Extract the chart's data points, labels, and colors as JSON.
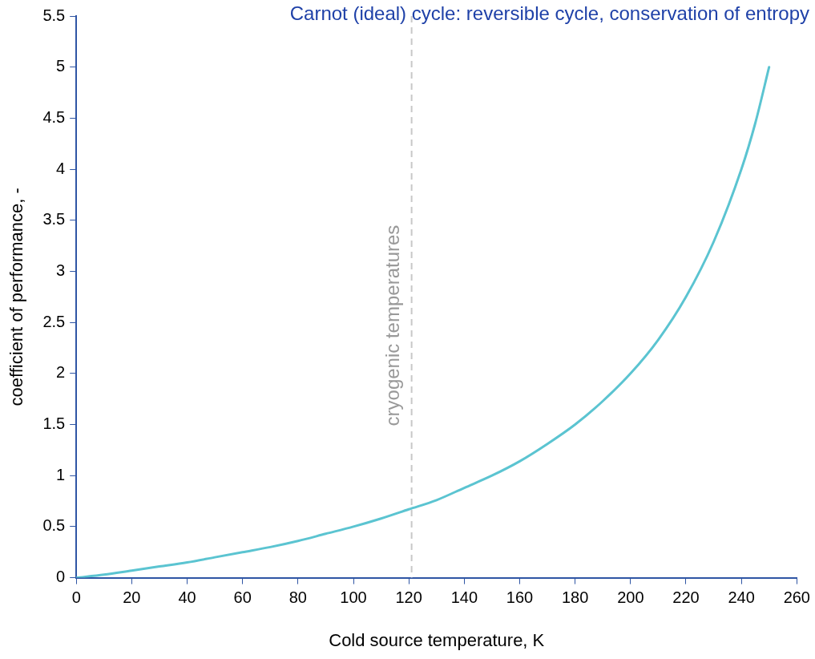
{
  "chart_data": {
    "type": "line",
    "title": "Carnot (ideal) cycle: reversible cycle, conservation of entropy",
    "xlabel": "Cold source temperature, K",
    "ylabel": "coefficient of performance, -",
    "x": [
      0,
      10,
      20,
      30,
      40,
      50,
      60,
      70,
      80,
      90,
      100,
      110,
      120,
      130,
      140,
      150,
      160,
      170,
      180,
      190,
      200,
      210,
      220,
      230,
      240,
      245,
      250
    ],
    "series": [
      {
        "color": "#5bc4d1",
        "values": [
          0,
          0.03,
          0.07,
          0.11,
          0.15,
          0.2,
          0.25,
          0.3,
          0.36,
          0.43,
          0.5,
          0.58,
          0.67,
          0.76,
          0.88,
          1.0,
          1.14,
          1.31,
          1.5,
          1.73,
          2.0,
          2.33,
          2.75,
          3.29,
          4.0,
          4.45,
          5.0
        ]
      }
    ],
    "xlim": [
      0,
      260
    ],
    "xticks": [
      0,
      20,
      40,
      60,
      80,
      100,
      120,
      140,
      160,
      180,
      200,
      220,
      240,
      260
    ],
    "ylim": [
      0,
      5.5
    ],
    "yticks": [
      0,
      0.5,
      1,
      1.5,
      2,
      2.5,
      3,
      3.5,
      4,
      4.5,
      5,
      5.5
    ],
    "ref_lines": [
      {
        "axis": "x",
        "value": 121,
        "label": "cryogenic temperatures",
        "color": "#c8c8c8",
        "line_style": "dashed"
      }
    ],
    "grid": false,
    "legend": false,
    "marker": "none",
    "line_style": "solid"
  }
}
